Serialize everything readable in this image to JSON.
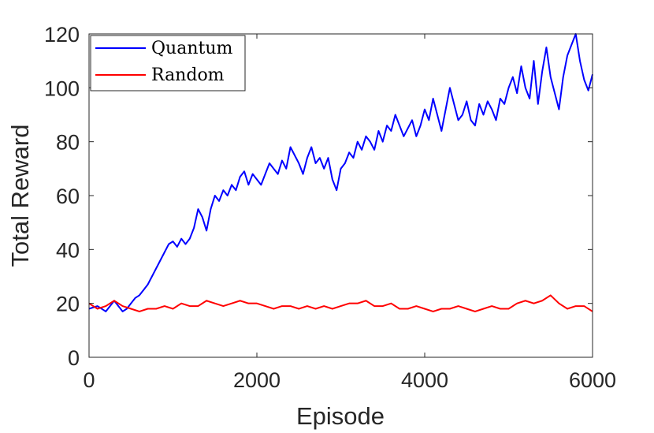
{
  "chart_data": {
    "type": "line",
    "title": "",
    "xlabel": "Episode",
    "ylabel": "Total Reward",
    "xlim": [
      0,
      6000
    ],
    "ylim": [
      0,
      120
    ],
    "xticks": [
      0,
      2000,
      4000,
      6000
    ],
    "yticks": [
      0,
      20,
      40,
      60,
      80,
      100,
      120
    ],
    "grid": false,
    "legend_position": "top-left",
    "series": [
      {
        "name": "Quantum",
        "color": "#0000ff",
        "x": [
          0,
          100,
          200,
          250,
          300,
          350,
          400,
          450,
          500,
          550,
          600,
          650,
          700,
          750,
          800,
          850,
          900,
          950,
          1000,
          1050,
          1100,
          1150,
          1200,
          1250,
          1300,
          1350,
          1400,
          1450,
          1500,
          1550,
          1600,
          1650,
          1700,
          1750,
          1800,
          1850,
          1900,
          1950,
          2000,
          2050,
          2100,
          2150,
          2200,
          2250,
          2300,
          2350,
          2400,
          2450,
          2500,
          2550,
          2600,
          2650,
          2700,
          2750,
          2800,
          2850,
          2900,
          2950,
          3000,
          3050,
          3100,
          3150,
          3200,
          3250,
          3300,
          3350,
          3400,
          3450,
          3500,
          3550,
          3600,
          3650,
          3700,
          3750,
          3800,
          3850,
          3900,
          3950,
          4000,
          4050,
          4100,
          4150,
          4200,
          4250,
          4300,
          4350,
          4400,
          4450,
          4500,
          4550,
          4600,
          4650,
          4700,
          4750,
          4800,
          4850,
          4900,
          4950,
          5000,
          5050,
          5100,
          5150,
          5200,
          5250,
          5300,
          5350,
          5400,
          5450,
          5500,
          5550,
          5600,
          5650,
          5700,
          5750,
          5800,
          5850,
          5900,
          5950,
          6000
        ],
        "values": [
          18,
          19,
          17,
          19,
          21,
          19,
          17,
          18,
          20,
          22,
          23,
          25,
          27,
          30,
          33,
          36,
          39,
          42,
          43,
          41,
          44,
          42,
          44,
          48,
          55,
          52,
          47,
          55,
          60,
          58,
          62,
          60,
          64,
          62,
          67,
          69,
          64,
          68,
          66,
          64,
          68,
          72,
          70,
          68,
          73,
          70,
          78,
          75,
          72,
          68,
          74,
          78,
          72,
          74,
          70,
          74,
          66,
          62,
          70,
          72,
          76,
          74,
          80,
          77,
          82,
          80,
          77,
          84,
          80,
          86,
          84,
          90,
          86,
          82,
          85,
          88,
          82,
          86,
          92,
          88,
          96,
          90,
          84,
          92,
          100,
          94,
          88,
          90,
          95,
          88,
          86,
          94,
          90,
          95,
          92,
          88,
          96,
          94,
          100,
          104,
          98,
          108,
          100,
          96,
          110,
          94,
          106,
          115,
          104,
          98,
          92,
          104,
          112,
          116,
          120,
          110,
          103,
          99,
          105
        ]
      },
      {
        "name": "Random",
        "color": "#ff0000",
        "x": [
          0,
          100,
          200,
          300,
          400,
          500,
          600,
          700,
          800,
          900,
          1000,
          1100,
          1200,
          1300,
          1400,
          1500,
          1600,
          1700,
          1800,
          1900,
          2000,
          2100,
          2200,
          2300,
          2400,
          2500,
          2600,
          2700,
          2800,
          2900,
          3000,
          3100,
          3200,
          3300,
          3400,
          3500,
          3600,
          3700,
          3800,
          3900,
          4000,
          4100,
          4200,
          4300,
          4400,
          4500,
          4600,
          4700,
          4800,
          4900,
          5000,
          5100,
          5200,
          5300,
          5400,
          5500,
          5600,
          5700,
          5800,
          5900,
          6000
        ],
        "values": [
          20,
          18,
          19,
          21,
          19,
          18,
          17,
          18,
          18,
          19,
          18,
          20,
          19,
          19,
          21,
          20,
          19,
          20,
          21,
          20,
          20,
          19,
          18,
          19,
          19,
          18,
          19,
          18,
          19,
          18,
          19,
          20,
          20,
          21,
          19,
          19,
          20,
          18,
          18,
          19,
          18,
          17,
          18,
          18,
          19,
          18,
          17,
          18,
          19,
          18,
          18,
          20,
          21,
          20,
          21,
          23,
          20,
          18,
          19,
          19,
          17
        ]
      }
    ]
  }
}
